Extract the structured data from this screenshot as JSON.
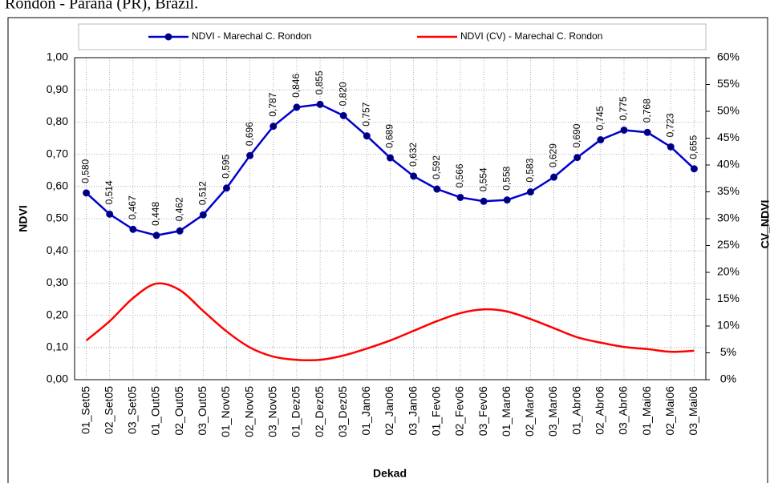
{
  "chart_data": {
    "type": "line",
    "title": ". Rondon - Paraná (PR), Brazil.",
    "x_label": "Dekad",
    "y_label": "NDVI",
    "y2_label": "CV_NDVI",
    "legend": "top",
    "grid": true,
    "categories": [
      "01_Set05",
      "02_Set05",
      "03_Set05",
      "01_Out05",
      "02_Out05",
      "03_Out05",
      "01_Nov05",
      "02_Nov05",
      "03_Nov05",
      "01_Dez05",
      "02_Dez05",
      "03_Dez05",
      "01_Jan06",
      "02_Jan06",
      "03_Jan06",
      "01_Fev06",
      "02_Fev06",
      "03_Fev06",
      "01_Mar06",
      "02_Mar06",
      "03_Mar06",
      "01_Abr06",
      "02_Abr06",
      "03_Abr06",
      "01_Mai06",
      "02_Mai06",
      "03_Mai06"
    ],
    "series": [
      {
        "name": "NDVI - Marechal C. Rondon",
        "color": "#0000cc",
        "marker_color": "#000066",
        "values": [
          0.58,
          0.514,
          0.467,
          0.448,
          0.462,
          0.512,
          0.595,
          0.696,
          0.787,
          0.846,
          0.855,
          0.82,
          0.757,
          0.689,
          0.632,
          0.592,
          0.566,
          0.554,
          0.558,
          0.583,
          0.629,
          0.69,
          0.745,
          0.775,
          0.768,
          0.723,
          0.655
        ],
        "value_labels": [
          "0,580",
          "0,514",
          "0,467",
          "0,448",
          "0,462",
          "0,512",
          "0,595",
          "0,696",
          "0,787",
          "0,846",
          "0,855",
          "0,820",
          "0,757",
          "0,689",
          "0,632",
          "0,592",
          "0,566",
          "0,554",
          "0,558",
          "0,583",
          "0,629",
          "0,690",
          "0,745",
          "0,775",
          "0,768",
          "0,723",
          "0,655"
        ]
      },
      {
        "name": "NDVI (CV) - Marechal C. Rondon",
        "color": "#ff0000",
        "axis": "y2",
        "smooth": true,
        "values": [
          7.3,
          10.9,
          15.2,
          17.9,
          16.7,
          12.8,
          9.0,
          6.0,
          4.3,
          3.7,
          3.7,
          4.5,
          5.8,
          7.3,
          9.1,
          10.9,
          12.4,
          13.1,
          12.7,
          11.3,
          9.6,
          7.9,
          6.9,
          6.1,
          5.7,
          5.2,
          5.4
        ]
      }
    ],
    "ylim": [
      0,
      1
    ],
    "yticks": [
      {
        "value": 0,
        "label": "0,00"
      },
      {
        "value": 0.1,
        "label": "0,10"
      },
      {
        "value": 0.2,
        "label": "0,20"
      },
      {
        "value": 0.3,
        "label": "0,30"
      },
      {
        "value": 0.4,
        "label": "0,40"
      },
      {
        "value": 0.5,
        "label": "0,50"
      },
      {
        "value": 0.6,
        "label": "0,60"
      },
      {
        "value": 0.7,
        "label": "0,70"
      },
      {
        "value": 0.8,
        "label": "0,80"
      },
      {
        "value": 0.9,
        "label": "0,90"
      },
      {
        "value": 1,
        "label": "1,00"
      }
    ],
    "y2lim": [
      0,
      60
    ],
    "y2ticks": [
      {
        "value": 0,
        "label": "0%"
      },
      {
        "value": 5,
        "label": "5%"
      },
      {
        "value": 10,
        "label": "10%"
      },
      {
        "value": 15,
        "label": "15%"
      },
      {
        "value": 20,
        "label": "20%"
      },
      {
        "value": 25,
        "label": "25%"
      },
      {
        "value": 30,
        "label": "30%"
      },
      {
        "value": 35,
        "label": "35%"
      },
      {
        "value": 40,
        "label": "40%"
      },
      {
        "value": 45,
        "label": "45%"
      },
      {
        "value": 50,
        "label": "50%"
      },
      {
        "value": 55,
        "label": "55%"
      },
      {
        "value": 60,
        "label": "60%"
      }
    ]
  }
}
